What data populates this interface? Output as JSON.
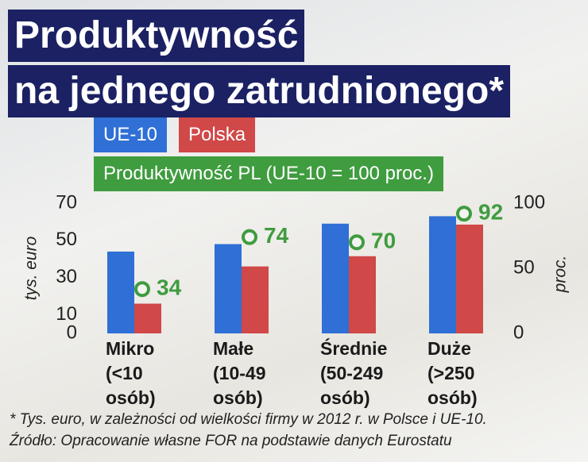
{
  "chart_data": {
    "type": "bar",
    "title": [
      "Produktywność",
      "na jednego zatrudnionego*"
    ],
    "categories": [
      "Mikro\n(<10\nosób)",
      "Małe\n(10-49\nosób)",
      "Średnie\n(50-249\nosób)",
      "Duże\n(>250\nosób)"
    ],
    "series": [
      {
        "name": "UE-10",
        "color": "#2f6fd6",
        "values": [
          44,
          48,
          59,
          63
        ]
      },
      {
        "name": "Polska",
        "color": "#d04848",
        "values": [
          16,
          36,
          41.5,
          58.5
        ]
      },
      {
        "name": "Produktywność PL (UE-10 = 100 proc.)",
        "color": "#3f9c3f",
        "axis": "y2",
        "marker": "circle",
        "values": [
          34,
          74,
          70,
          92
        ]
      }
    ],
    "ylabel": "tys. euro",
    "y2label": "proc.",
    "ylim": [
      0,
      70
    ],
    "yticks": [
      0,
      10,
      30,
      50,
      70
    ],
    "y2lim": [
      0,
      100
    ],
    "y2ticks": [
      0,
      50,
      100
    ],
    "notes": [
      "* Tys. euro, w zależności od wielkości firmy w 2012 r. w Polsce i UE-10.",
      "Źródło: Opracowanie własne FOR na podstawie danych Eurostatu"
    ]
  }
}
